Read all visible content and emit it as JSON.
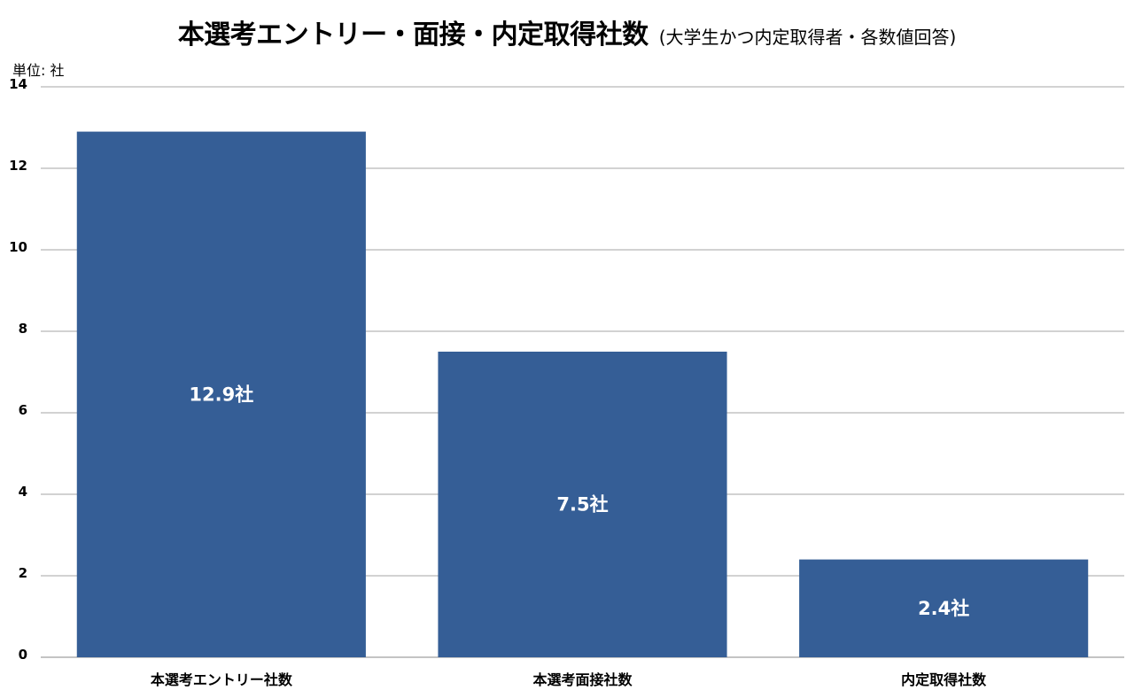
{
  "title": {
    "main": "本選考エントリー・面接・内定取得社数",
    "sub": "(大学生かつ内定取得者・各数値回答)"
  },
  "unit_label": "単位: 社",
  "chart_data": {
    "type": "bar",
    "categories": [
      "本選考エントリー社数",
      "本選考面接社数",
      "内定取得社数"
    ],
    "values": [
      12.9,
      7.5,
      2.4
    ],
    "data_labels": [
      "12.9社",
      "7.5社",
      "2.4社"
    ],
    "title": "本選考エントリー・面接・内定取得社数",
    "subtitle": "(大学生かつ内定取得者・各数値回答)",
    "ylabel": "単位: 社",
    "ylim": [
      0,
      14
    ],
    "yticks": [
      0,
      2,
      4,
      6,
      8,
      10,
      12,
      14
    ],
    "grid": true,
    "legend": "none",
    "bar_color": "#355e96"
  }
}
